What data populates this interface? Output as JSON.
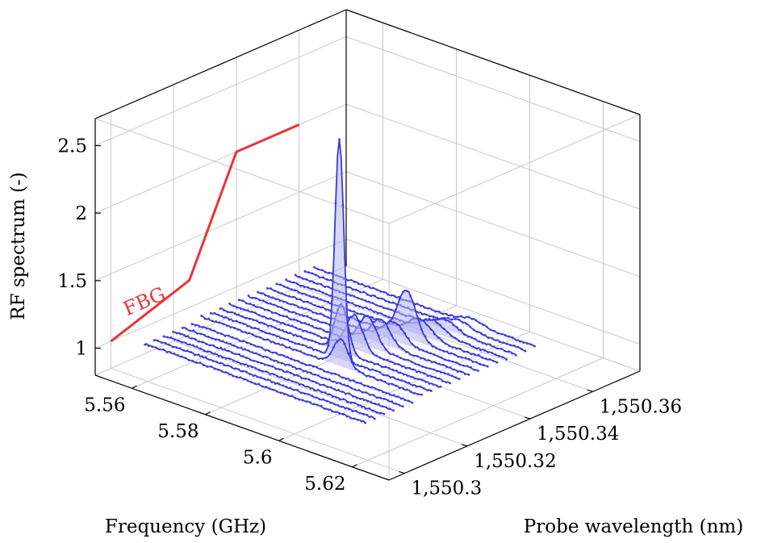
{
  "chart_data": {
    "type": "3d-waterfall",
    "title": "",
    "xlabel": "Frequency (GHz)",
    "ylabel": "Probe wavelength (nm)",
    "zlabel": "RF spectrum (-)",
    "xlim": [
      5.55,
      5.63
    ],
    "ylim": [
      1550.295,
      1550.375
    ],
    "zlim": [
      0.8,
      2.7
    ],
    "xticks": [
      "5.56",
      "5.58",
      "5.6",
      "5.62"
    ],
    "xtick_values": [
      5.56,
      5.58,
      5.6,
      5.62
    ],
    "yticks": [
      "1,550.3",
      "1,550.32",
      "1,550.34",
      "1,550.36"
    ],
    "ytick_values": [
      1550.3,
      1550.32,
      1550.34,
      1550.36
    ],
    "zticks": [
      "1",
      "1.5",
      "2",
      "2.5"
    ],
    "ztick_values": [
      1,
      1.5,
      2,
      2.5
    ],
    "grid": true,
    "colors": {
      "series": "#3b3bdc",
      "fill": "#b4b4f0",
      "fbg": "#e8343a"
    },
    "fbg": {
      "label": "FBG",
      "points": [
        {
          "wavelength": 1550.3,
          "value": 1.0
        },
        {
          "wavelength": 1550.325,
          "value": 1.2
        },
        {
          "wavelength": 1550.34,
          "value": 2.0
        },
        {
          "wavelength": 1550.36,
          "value": 2.0
        }
      ]
    },
    "series": [
      {
        "wavelength": 1550.305,
        "freq_range": [
          5.555,
          5.615
        ],
        "baseline": 0.98,
        "peak_freq": 5.6,
        "peak_height": 0.0,
        "width": 0.003
      },
      {
        "wavelength": 1550.308,
        "freq_range": [
          5.555,
          5.615
        ],
        "baseline": 0.98,
        "peak_freq": 5.6,
        "peak_height": 0.0,
        "width": 0.003
      },
      {
        "wavelength": 1550.311,
        "freq_range": [
          5.555,
          5.615
        ],
        "baseline": 0.98,
        "peak_freq": 5.6,
        "peak_height": 0.0,
        "width": 0.003
      },
      {
        "wavelength": 1550.314,
        "freq_range": [
          5.555,
          5.615
        ],
        "baseline": 0.98,
        "peak_freq": 5.6,
        "peak_height": 0.0,
        "width": 0.003
      },
      {
        "wavelength": 1550.317,
        "freq_range": [
          5.555,
          5.615
        ],
        "baseline": 0.98,
        "peak_freq": 5.6,
        "peak_height": 0.0,
        "width": 0.003
      },
      {
        "wavelength": 1550.32,
        "freq_range": [
          5.555,
          5.615
        ],
        "baseline": 0.98,
        "peak_freq": 5.6,
        "peak_height": 0.0,
        "width": 0.003
      },
      {
        "wavelength": 1550.323,
        "freq_range": [
          5.555,
          5.615
        ],
        "baseline": 1.0,
        "peak_freq": 5.593,
        "peak_height": 0.2,
        "width": 0.002
      },
      {
        "wavelength": 1550.326,
        "freq_range": [
          5.555,
          5.615
        ],
        "baseline": 1.0,
        "peak_freq": 5.59,
        "peak_height": 1.62,
        "width": 0.0012
      },
      {
        "wavelength": 1550.329,
        "freq_range": [
          5.555,
          5.615
        ],
        "baseline": 1.0,
        "peak_freq": 5.588,
        "peak_height": 0.35,
        "width": 0.0018
      },
      {
        "wavelength": 1550.332,
        "freq_range": [
          5.555,
          5.615
        ],
        "baseline": 1.0,
        "peak_freq": 5.589,
        "peak_height": 0.25,
        "width": 0.0022
      },
      {
        "wavelength": 1550.335,
        "freq_range": [
          5.555,
          5.615
        ],
        "baseline": 1.0,
        "peak_freq": 5.59,
        "peak_height": 0.22,
        "width": 0.0024
      },
      {
        "wavelength": 1550.338,
        "freq_range": [
          5.555,
          5.615
        ],
        "baseline": 1.0,
        "peak_freq": 5.591,
        "peak_height": 0.18,
        "width": 0.0026
      },
      {
        "wavelength": 1550.341,
        "freq_range": [
          5.555,
          5.615
        ],
        "baseline": 1.0,
        "peak_freq": 5.592,
        "peak_height": 0.14,
        "width": 0.0028
      },
      {
        "wavelength": 1550.344,
        "freq_range": [
          5.555,
          5.615
        ],
        "baseline": 1.0,
        "peak_freq": 5.593,
        "peak_height": 0.35,
        "width": 0.0026
      },
      {
        "wavelength": 1550.347,
        "freq_range": [
          5.555,
          5.615
        ],
        "baseline": 1.0,
        "peak_freq": 5.594,
        "peak_height": 0.12,
        "width": 0.003
      },
      {
        "wavelength": 1550.35,
        "freq_range": [
          5.555,
          5.615
        ],
        "baseline": 1.0,
        "peak_freq": 5.595,
        "peak_height": 0.09,
        "width": 0.003
      },
      {
        "wavelength": 1550.353,
        "freq_range": [
          5.555,
          5.615
        ],
        "baseline": 1.0,
        "peak_freq": 5.596,
        "peak_height": 0.07,
        "width": 0.003
      },
      {
        "wavelength": 1550.356,
        "freq_range": [
          5.555,
          5.615
        ],
        "baseline": 1.0,
        "peak_freq": 5.597,
        "peak_height": 0.05,
        "width": 0.003
      },
      {
        "wavelength": 1550.359,
        "freq_range": [
          5.555,
          5.615
        ],
        "baseline": 1.0,
        "peak_freq": 5.598,
        "peak_height": 0.04,
        "width": 0.003
      }
    ]
  }
}
